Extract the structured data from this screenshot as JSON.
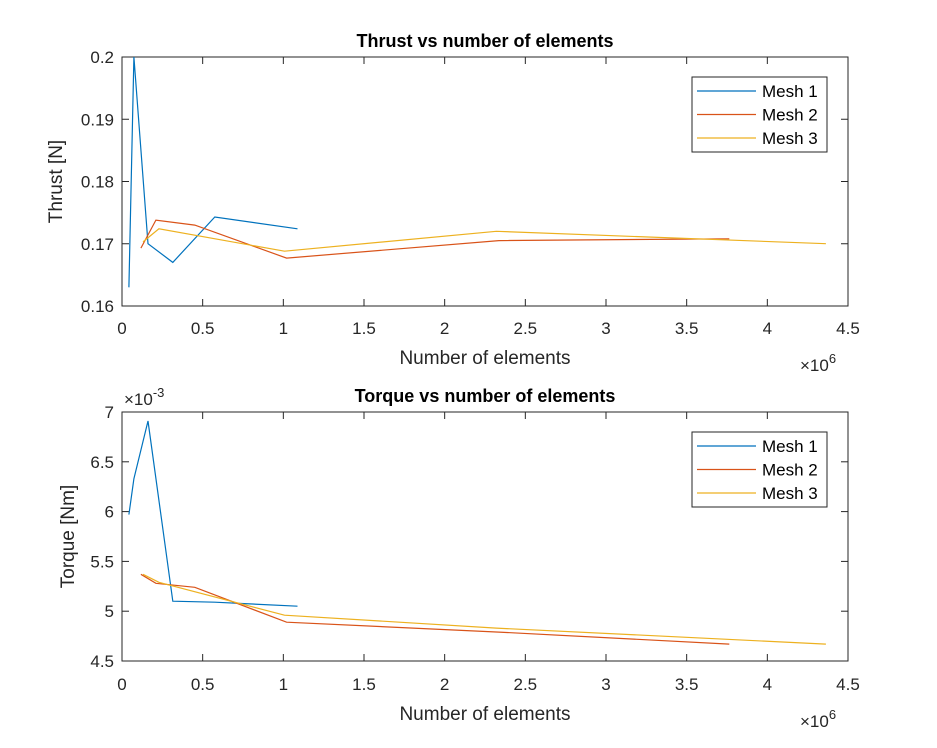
{
  "chart_data": [
    {
      "type": "line",
      "title": "Thrust vs number of elements",
      "xlabel": "Number of elements",
      "ylabel": "Thrust [N]",
      "x_exponent_label": "×10^6",
      "x_exponent_base": "×10",
      "x_exponent_power": "6",
      "y_exponent_base": "",
      "y_exponent_power": "",
      "xlim": [
        0,
        4.5
      ],
      "ylim": [
        0.16,
        0.2
      ],
      "xticks": [
        0,
        0.5,
        1,
        1.5,
        2,
        2.5,
        3,
        3.5,
        4,
        4.5
      ],
      "xtick_labels": [
        "0",
        "0.5",
        "1",
        "1.5",
        "2",
        "2.5",
        "3",
        "3.5",
        "4",
        "4.5"
      ],
      "yticks": [
        0.16,
        0.17,
        0.18,
        0.19,
        0.2
      ],
      "ytick_labels": [
        "0.16",
        "0.17",
        "0.18",
        "0.19",
        "0.2"
      ],
      "grid": false,
      "legend_position": "top-right",
      "series": [
        {
          "name": "Mesh 1",
          "color": "#0072BD",
          "x": [
            0.043,
            0.074,
            0.161,
            0.315,
            0.575,
            1.088
          ],
          "y": [
            0.163,
            0.2,
            0.17,
            0.167,
            0.1743,
            0.1724
          ]
        },
        {
          "name": "Mesh 2",
          "color": "#D95319",
          "x": [
            0.117,
            0.21,
            0.451,
            1.02,
            2.336,
            3.764
          ],
          "y": [
            0.1693,
            0.1738,
            0.173,
            0.1677,
            0.1705,
            0.1708
          ]
        },
        {
          "name": "Mesh 3",
          "color": "#EDB120",
          "x": [
            0.13,
            0.229,
            1.007,
            2.32,
            4.363
          ],
          "y": [
            0.1703,
            0.1724,
            0.1688,
            0.172,
            0.17
          ]
        }
      ]
    },
    {
      "type": "line",
      "title": "Torque vs number of elements",
      "xlabel": "Number of elements",
      "ylabel": "Torque [Nm]",
      "x_exponent_label": "×10^6",
      "x_exponent_base": "×10",
      "x_exponent_power": "6",
      "y_exponent_label": "×10^-3",
      "y_exponent_base": "×10",
      "y_exponent_power": "-3",
      "y_scale_note": "values in units of 1e-3 Nm",
      "xlim": [
        0,
        4.5
      ],
      "ylim": [
        4.5,
        7
      ],
      "xticks": [
        0,
        0.5,
        1,
        1.5,
        2,
        2.5,
        3,
        3.5,
        4,
        4.5
      ],
      "xtick_labels": [
        "0",
        "0.5",
        "1",
        "1.5",
        "2",
        "2.5",
        "3",
        "3.5",
        "4",
        "4.5"
      ],
      "yticks": [
        4.5,
        5,
        5.5,
        6,
        6.5,
        7
      ],
      "ytick_labels": [
        "4.5",
        "5",
        "5.5",
        "6",
        "6.5",
        "7"
      ],
      "grid": false,
      "legend_position": "top-right",
      "series": [
        {
          "name": "Mesh 1",
          "color": "#0072BD",
          "x": [
            0.043,
            0.074,
            0.161,
            0.315,
            0.575,
            1.088
          ],
          "y": [
            5.97,
            6.33,
            6.91,
            5.1,
            5.09,
            5.05
          ]
        },
        {
          "name": "Mesh 2",
          "color": "#D95319",
          "x": [
            0.117,
            0.21,
            0.451,
            1.02,
            2.336,
            3.764
          ],
          "y": [
            5.37,
            5.28,
            5.24,
            4.89,
            4.79,
            4.67
          ]
        },
        {
          "name": "Mesh 3",
          "color": "#EDB120",
          "x": [
            0.13,
            0.229,
            1.007,
            2.32,
            4.363
          ],
          "y": [
            5.37,
            5.29,
            4.96,
            4.83,
            4.67
          ]
        }
      ]
    }
  ]
}
